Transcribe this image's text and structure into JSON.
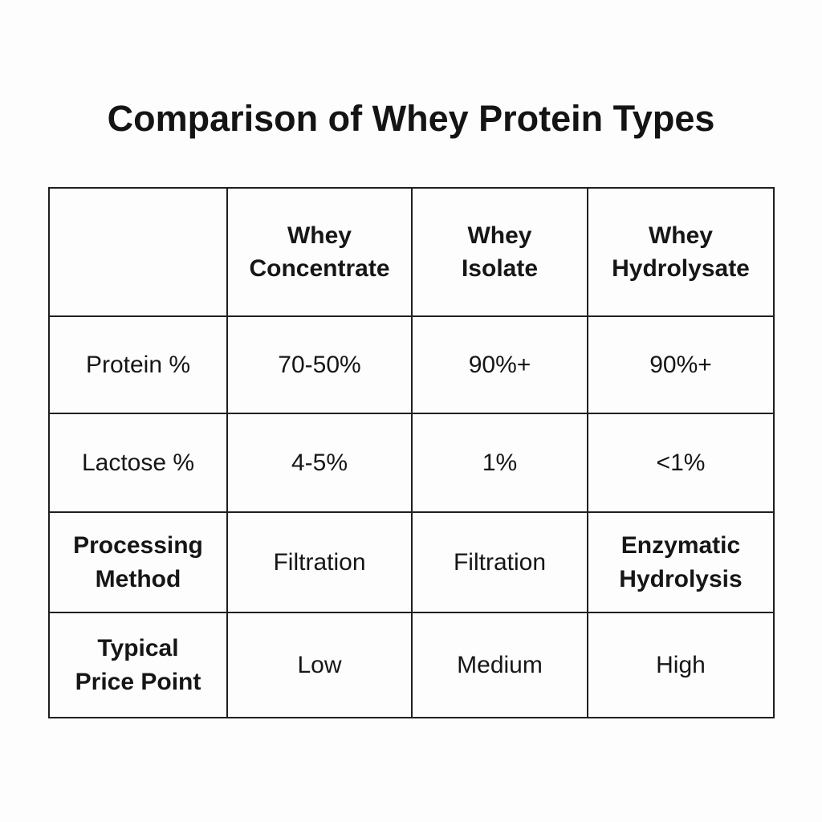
{
  "chart_data": {
    "type": "table",
    "title": "Comparison of Whey Protein Types",
    "columns": [
      "",
      "Whey Concentrate",
      "Whey Isolate",
      "Whey Hydrolysate"
    ],
    "rows": [
      {
        "label": "Protein %",
        "values": [
          "70-50%",
          "90%+",
          "90%+"
        ]
      },
      {
        "label": "Lactose %",
        "values": [
          "4-5%",
          "1%",
          "<1%"
        ]
      },
      {
        "label": "Processing Method",
        "values": [
          "Filtration",
          "Filtration",
          "Enzymatic Hydrolysis"
        ]
      },
      {
        "label": "Typical Price Point",
        "values": [
          "Low",
          "Medium",
          "High"
        ]
      }
    ]
  },
  "colors": {
    "text": "#161616",
    "border": "#1f1f1f",
    "background": "#fdfdfd"
  }
}
